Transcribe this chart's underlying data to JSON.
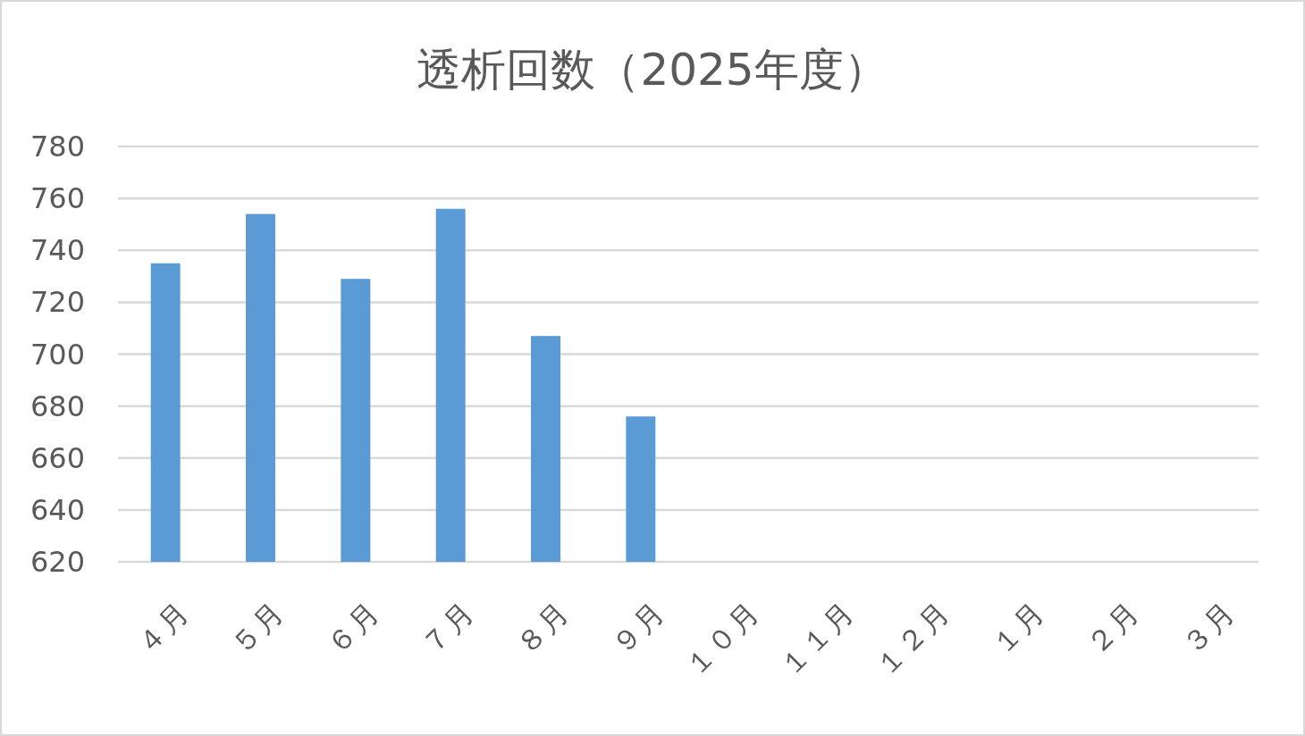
{
  "chart_data": {
    "type": "bar",
    "title": "透析回数（2025年度）",
    "categories": [
      "４月",
      "５月",
      "６月",
      "７月",
      "８月",
      "９月",
      "１０月",
      "１１月",
      "１２月",
      "１月",
      "２月",
      "３月"
    ],
    "series": [
      {
        "color": "#5b9bd5",
        "values": [
          735,
          754,
          729,
          756,
          707,
          676,
          null,
          null,
          null,
          null,
          null,
          null
        ]
      }
    ],
    "ylim": [
      620,
      780
    ],
    "yticks": [
      620,
      640,
      660,
      680,
      700,
      720,
      740,
      760,
      780
    ],
    "grid": "y"
  }
}
